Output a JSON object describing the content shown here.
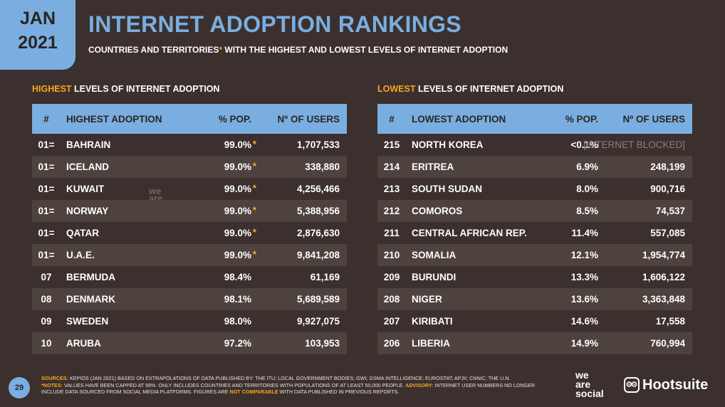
{
  "badge": {
    "month": "JAN",
    "year": "2021"
  },
  "title": "INTERNET ADOPTION RANKINGS",
  "subtitle_pre": "COUNTRIES AND TERRITORIES",
  "subtitle_ast": "*",
  "subtitle_post": " WITH THE HIGHEST AND LOWEST LEVELS OF INTERNET ADOPTION",
  "highest": {
    "label_hl": "HIGHEST",
    "label_rest": " LEVELS OF INTERNET ADOPTION",
    "headers": [
      "#",
      "HIGHEST ADOPTION",
      "% POP.",
      "Nº OF USERS"
    ],
    "rows": [
      {
        "rank": "01=",
        "name": "BAHRAIN",
        "pct": "99.0%",
        "ast": "*",
        "users": "1,707,533"
      },
      {
        "rank": "01=",
        "name": "ICELAND",
        "pct": "99.0%",
        "ast": "*",
        "users": "338,880"
      },
      {
        "rank": "01=",
        "name": "KUWAIT",
        "pct": "99.0%",
        "ast": "*",
        "users": "4,256,466"
      },
      {
        "rank": "01=",
        "name": "NORWAY",
        "pct": "99.0%",
        "ast": "*",
        "users": "5,388,956"
      },
      {
        "rank": "01=",
        "name": "QATAR",
        "pct": "99.0%",
        "ast": "*",
        "users": "2,876,630"
      },
      {
        "rank": "01=",
        "name": "U.A.E.",
        "pct": "99.0%",
        "ast": "*",
        "users": "9,841,208"
      },
      {
        "rank": "07",
        "name": "BERMUDA",
        "pct": "98.4%",
        "ast": "",
        "users": "61,169"
      },
      {
        "rank": "08",
        "name": "DENMARK",
        "pct": "98.1%",
        "ast": "",
        "users": "5,689,589"
      },
      {
        "rank": "09",
        "name": "SWEDEN",
        "pct": "98.0%",
        "ast": "",
        "users": "9,927,075"
      },
      {
        "rank": "10",
        "name": "ARUBA",
        "pct": "97.2%",
        "ast": "",
        "users": "103,953"
      }
    ]
  },
  "lowest": {
    "label_hl": "LOWEST",
    "label_rest": " LEVELS OF INTERNET ADOPTION",
    "headers": [
      "#",
      "LOWEST ADOPTION",
      "% POP.",
      "Nº OF USERS"
    ],
    "rows": [
      {
        "rank": "215",
        "name": "NORTH KOREA",
        "pct": "<0.1%",
        "users": "[INTERNET BLOCKED]",
        "blocked": true
      },
      {
        "rank": "214",
        "name": "ERITREA",
        "pct": "6.9%",
        "users": "248,199"
      },
      {
        "rank": "213",
        "name": "SOUTH SUDAN",
        "pct": "8.0%",
        "users": "900,716"
      },
      {
        "rank": "212",
        "name": "COMOROS",
        "pct": "8.5%",
        "users": "74,537"
      },
      {
        "rank": "211",
        "name": "CENTRAL AFRICAN REP.",
        "pct": "11.4%",
        "users": "557,085"
      },
      {
        "rank": "210",
        "name": "SOMALIA",
        "pct": "12.1%",
        "users": "1,954,774"
      },
      {
        "rank": "209",
        "name": "BURUNDI",
        "pct": "13.3%",
        "users": "1,606,122"
      },
      {
        "rank": "208",
        "name": "NIGER",
        "pct": "13.6%",
        "users": "3,363,848"
      },
      {
        "rank": "207",
        "name": "KIRIBATI",
        "pct": "14.6%",
        "users": "17,558"
      },
      {
        "rank": "206",
        "name": "LIBERIA",
        "pct": "14.9%",
        "users": "760,994"
      }
    ]
  },
  "footer": {
    "sources_label": "SOURCES:",
    "sources_text": " KEPIOS (JAN 2021) BASED ON EXTRAPOLATIONS OF DATA PUBLISHED BY: THE ITU; LOCAL GOVERNMENT BODIES; GWI; GSMA INTELLIGENCE; EUROSTAT; APJII; CNNIC; THE U.N.",
    "notes_label": "*NOTES:",
    "notes_text": " VALUES HAVE BEEN CAPPED AT 99%. ONLY INCLUDES COUNTRIES AND TERRITORIES WITH POPULATIONS OF AT LEAST 50,000 PEOPLE. ",
    "advisory_label": "ADVISORY:",
    "advisory_text": " INTERNET USER NUMBERS NO LONGER INCLUDE DATA SOURCED FROM SOCIAL MEDIA PLATFORMS. FIGURES ARE ",
    "not_comparable": "NOT COMPARABLE",
    "end_text": " WITH DATA PUBLISHED IN PREVIOUS REPORTS."
  },
  "page_number": "29",
  "brand_was": [
    "we",
    "are",
    "social"
  ],
  "brand_hootsuite": "Hootsuite",
  "watermark": [
    "we",
    "are",
    "social"
  ]
}
